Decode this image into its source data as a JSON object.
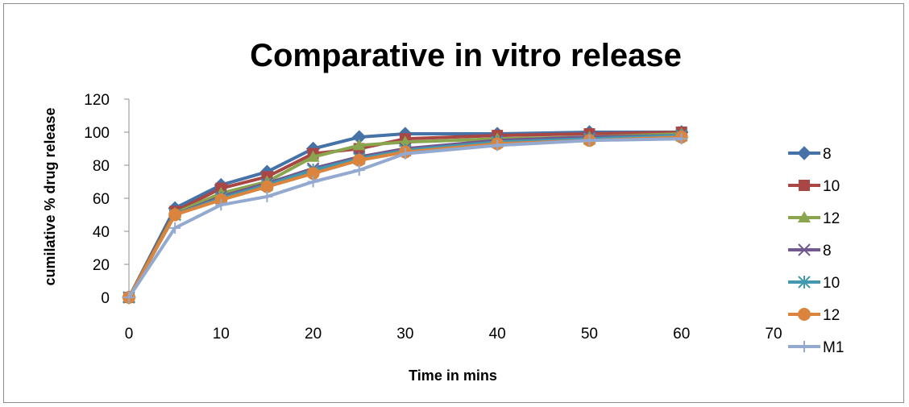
{
  "chart_data": {
    "type": "line",
    "title": "Comparative in vitro release",
    "xlabel": "Time in mins",
    "ylabel": "cumilative % drug release",
    "x": [
      0,
      5,
      10,
      15,
      20,
      25,
      30,
      40,
      50,
      60
    ],
    "xlim": [
      0,
      70
    ],
    "ylim": [
      0,
      120
    ],
    "xticks": [
      "0",
      "10",
      "20",
      "30",
      "40",
      "50",
      "60",
      "70"
    ],
    "yticks": [
      "0",
      "20",
      "40",
      "60",
      "80",
      "100",
      "120"
    ],
    "grid": false,
    "legend": "right",
    "series": [
      {
        "name": "8",
        "marker": "diamond",
        "color": "#4572A7",
        "values": [
          0,
          54,
          68,
          76,
          90,
          97,
          99,
          99,
          100,
          100
        ]
      },
      {
        "name": "10",
        "marker": "square",
        "color": "#AA4643",
        "values": [
          0,
          52,
          66,
          73,
          87,
          90,
          96,
          98,
          99,
          100
        ]
      },
      {
        "name": "12",
        "marker": "triangle",
        "color": "#89A54E",
        "values": [
          0,
          51,
          63,
          70,
          85,
          92,
          94,
          96,
          97,
          99
        ]
      },
      {
        "name": "8",
        "marker": "x",
        "color": "#71588F",
        "values": [
          0,
          50,
          61,
          69,
          78,
          85,
          90,
          95,
          97,
          98
        ]
      },
      {
        "name": "10",
        "marker": "star",
        "color": "#4198AF",
        "values": [
          0,
          50,
          60,
          68,
          77,
          84,
          89,
          94,
          96,
          98
        ]
      },
      {
        "name": "12",
        "marker": "circle",
        "color": "#DB843D",
        "values": [
          0,
          50,
          59,
          67,
          75,
          83,
          88,
          93,
          95,
          97
        ]
      },
      {
        "name": "M1",
        "marker": "plus",
        "color": "#93A9CF",
        "values": [
          0,
          42,
          56,
          61,
          70,
          77,
          87,
          92,
          95,
          96
        ]
      }
    ]
  }
}
